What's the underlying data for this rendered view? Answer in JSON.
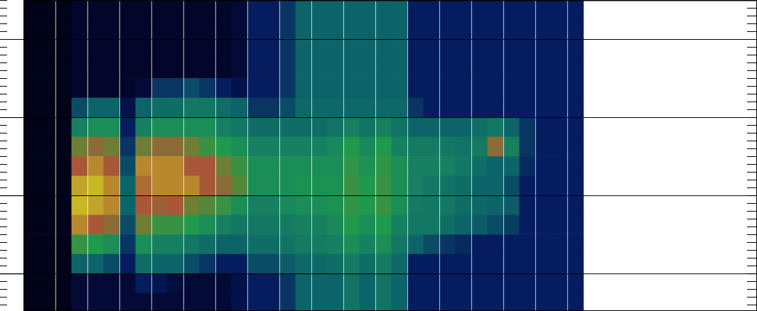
{
  "chart_data": {
    "type": "heatmap",
    "x": [
      0.25,
      0.75,
      1.25,
      1.75,
      2.25,
      2.75,
      3.25,
      3.75,
      4.25,
      4.75,
      5.25,
      5.75,
      6.25,
      6.75,
      7.25,
      7.75,
      8.25,
      8.75,
      9.25,
      9.75,
      10.25,
      10.75,
      11.25,
      11.75,
      12.25,
      12.75,
      13.25,
      13.75,
      14.25,
      14.75,
      15.25,
      15.75,
      16.25,
      16.75,
      17.25
    ],
    "y": [
      3.375,
      3.125,
      2.875,
      2.625,
      2.375,
      2.125,
      1.875,
      1.625,
      1.375,
      1.125,
      0.875,
      0.625,
      0.375,
      0.125,
      -0.125,
      -0.375
    ],
    "z": [
      [
        0,
        0,
        0,
        0.04,
        0.04,
        0.04,
        0.04,
        0.04,
        0.04,
        0.04,
        0.04,
        0.04,
        0.04,
        0.06,
        0.15,
        0.15,
        0.2,
        0.3,
        0.3,
        0.3,
        0.3,
        0.3,
        0.3,
        0.3,
        0.15,
        0.15,
        0.15,
        0.15,
        0.15,
        0.15,
        0.15,
        0.15,
        0.15,
        0.15,
        0.15
      ],
      [
        0,
        0,
        0,
        0.04,
        0.04,
        0.04,
        0.04,
        0.04,
        0.04,
        0.04,
        0.04,
        0.04,
        0.04,
        0.06,
        0.15,
        0.15,
        0.2,
        0.3,
        0.3,
        0.3,
        0.3,
        0.3,
        0.3,
        0.3,
        0.15,
        0.15,
        0.15,
        0.15,
        0.15,
        0.15,
        0.15,
        0.15,
        0.15,
        0.15,
        0.15
      ],
      [
        0,
        0,
        0,
        0.04,
        0.04,
        0.04,
        0.04,
        0.04,
        0.04,
        0.04,
        0.04,
        0.04,
        0.04,
        0.06,
        0.15,
        0.15,
        0.2,
        0.3,
        0.3,
        0.3,
        0.3,
        0.3,
        0.3,
        0.3,
        0.15,
        0.15,
        0.15,
        0.15,
        0.15,
        0.15,
        0.15,
        0.15,
        0.15,
        0.15,
        0.15
      ],
      [
        0,
        0,
        0,
        0.04,
        0.04,
        0.04,
        0.04,
        0.04,
        0.04,
        0.04,
        0.04,
        0.04,
        0.04,
        0.06,
        0.15,
        0.15,
        0.2,
        0.3,
        0.3,
        0.3,
        0.3,
        0.3,
        0.3,
        0.3,
        0.15,
        0.15,
        0.15,
        0.15,
        0.15,
        0.15,
        0.15,
        0.15,
        0.15,
        0.15,
        0.15
      ],
      [
        0,
        0,
        0,
        0.04,
        0.04,
        0.04,
        0.04,
        0.06,
        0.2,
        0.2,
        0.25,
        0.2,
        0.15,
        0.1,
        0.15,
        0.15,
        0.2,
        0.3,
        0.3,
        0.3,
        0.3,
        0.3,
        0.3,
        0.3,
        0.15,
        0.15,
        0.15,
        0.15,
        0.15,
        0.15,
        0.15,
        0.15,
        0.15,
        0.15,
        0.15
      ],
      [
        0,
        0,
        0,
        0.25,
        0.3,
        0.3,
        0.1,
        0.3,
        0.35,
        0.35,
        0.4,
        0.4,
        0.35,
        0.3,
        0.2,
        0.2,
        0.25,
        0.32,
        0.32,
        0.32,
        0.32,
        0.32,
        0.32,
        0.32,
        0.2,
        0.15,
        0.15,
        0.15,
        0.15,
        0.15,
        0.15,
        0.15,
        0.15,
        0.15,
        0.15
      ],
      [
        0,
        0,
        0,
        0.45,
        0.5,
        0.5,
        0.15,
        0.45,
        0.5,
        0.5,
        0.5,
        0.5,
        0.45,
        0.4,
        0.35,
        0.35,
        0.35,
        0.35,
        0.35,
        0.38,
        0.45,
        0.38,
        0.45,
        0.38,
        0.3,
        0.3,
        0.3,
        0.3,
        0.35,
        0.4,
        0.3,
        0.2,
        0.15,
        0.15,
        0.15
      ],
      [
        0,
        0,
        0,
        0.7,
        0.75,
        0.7,
        0.2,
        0.7,
        0.75,
        0.75,
        0.7,
        0.6,
        0.55,
        0.5,
        0.45,
        0.45,
        0.45,
        0.45,
        0.45,
        0.48,
        0.55,
        0.48,
        0.55,
        0.45,
        0.42,
        0.42,
        0.4,
        0.38,
        0.42,
        0.75,
        0.45,
        0.2,
        0.15,
        0.15,
        0.15
      ],
      [
        0,
        0,
        0,
        0.8,
        0.85,
        0.8,
        0.25,
        0.85,
        0.85,
        0.85,
        0.8,
        0.8,
        0.7,
        0.6,
        0.5,
        0.5,
        0.5,
        0.5,
        0.5,
        0.5,
        0.58,
        0.52,
        0.58,
        0.5,
        0.45,
        0.45,
        0.45,
        0.4,
        0.35,
        0.3,
        0.3,
        0.18,
        0.15,
        0.15,
        0.15
      ],
      [
        0,
        0,
        0,
        0.88,
        0.9,
        0.85,
        0.3,
        0.82,
        0.85,
        0.85,
        0.85,
        0.8,
        0.75,
        0.65,
        0.5,
        0.5,
        0.5,
        0.52,
        0.52,
        0.52,
        0.6,
        0.55,
        0.6,
        0.5,
        0.45,
        0.4,
        0.38,
        0.35,
        0.3,
        0.3,
        0.25,
        0.15,
        0.15,
        0.15,
        0.15
      ],
      [
        0,
        0,
        0,
        0.9,
        0.88,
        0.85,
        0.3,
        0.8,
        0.78,
        0.8,
        0.7,
        0.65,
        0.6,
        0.5,
        0.45,
        0.45,
        0.48,
        0.5,
        0.5,
        0.52,
        0.58,
        0.55,
        0.6,
        0.5,
        0.42,
        0.4,
        0.4,
        0.35,
        0.32,
        0.3,
        0.28,
        0.15,
        0.15,
        0.15,
        0.15
      ],
      [
        0,
        0,
        0,
        0.85,
        0.8,
        0.75,
        0.25,
        0.7,
        0.6,
        0.6,
        0.55,
        0.5,
        0.45,
        0.4,
        0.4,
        0.4,
        0.42,
        0.45,
        0.45,
        0.48,
        0.55,
        0.5,
        0.55,
        0.45,
        0.4,
        0.4,
        0.35,
        0.3,
        0.28,
        0.25,
        0.22,
        0.15,
        0.15,
        0.15,
        0.15
      ],
      [
        0,
        0,
        0,
        0.6,
        0.55,
        0.5,
        0.2,
        0.5,
        0.45,
        0.45,
        0.4,
        0.35,
        0.3,
        0.3,
        0.35,
        0.35,
        0.38,
        0.42,
        0.42,
        0.45,
        0.5,
        0.45,
        0.5,
        0.4,
        0.3,
        0.25,
        0.2,
        0.18,
        0.15,
        0.15,
        0.15,
        0.15,
        0.15,
        0.15,
        0.15
      ],
      [
        0,
        0,
        0,
        0.3,
        0.3,
        0.25,
        0.15,
        0.35,
        0.3,
        0.3,
        0.25,
        0.2,
        0.15,
        0.15,
        0.25,
        0.25,
        0.28,
        0.32,
        0.32,
        0.35,
        0.42,
        0.35,
        0.42,
        0.32,
        0.15,
        0.15,
        0.15,
        0.15,
        0.15,
        0.15,
        0.15,
        0.15,
        0.15,
        0.15,
        0.15
      ],
      [
        0,
        0,
        0,
        0.06,
        0.06,
        0.06,
        0.06,
        0.15,
        0.12,
        0.08,
        0.06,
        0.06,
        0.06,
        0.1,
        0.15,
        0.15,
        0.2,
        0.3,
        0.3,
        0.3,
        0.38,
        0.3,
        0.38,
        0.3,
        0.15,
        0.15,
        0.15,
        0.15,
        0.15,
        0.15,
        0.15,
        0.15,
        0.15,
        0.15,
        0.15
      ],
      [
        0,
        0,
        0,
        0.06,
        0.06,
        0.06,
        0.06,
        0.06,
        0.06,
        0.06,
        0.06,
        0.06,
        0.06,
        0.1,
        0.15,
        0.15,
        0.2,
        0.3,
        0.3,
        0.3,
        0.38,
        0.3,
        0.38,
        0.3,
        0.15,
        0.15,
        0.15,
        0.15,
        0.15,
        0.15,
        0.15,
        0.15,
        0.15,
        0.15,
        0.15
      ]
    ],
    "xlim": [
      0,
      22.93
    ],
    "ylim": [
      -0.48,
      3.5
    ],
    "xticks": [
      0,
      1,
      2,
      3,
      4,
      5,
      6,
      7,
      8,
      9,
      10,
      11,
      12,
      13,
      14,
      15,
      16,
      17,
      18,
      19,
      20,
      21,
      22
    ],
    "yticks": [
      0,
      1,
      2,
      3
    ],
    "grid": true,
    "tick_labels": false
  }
}
